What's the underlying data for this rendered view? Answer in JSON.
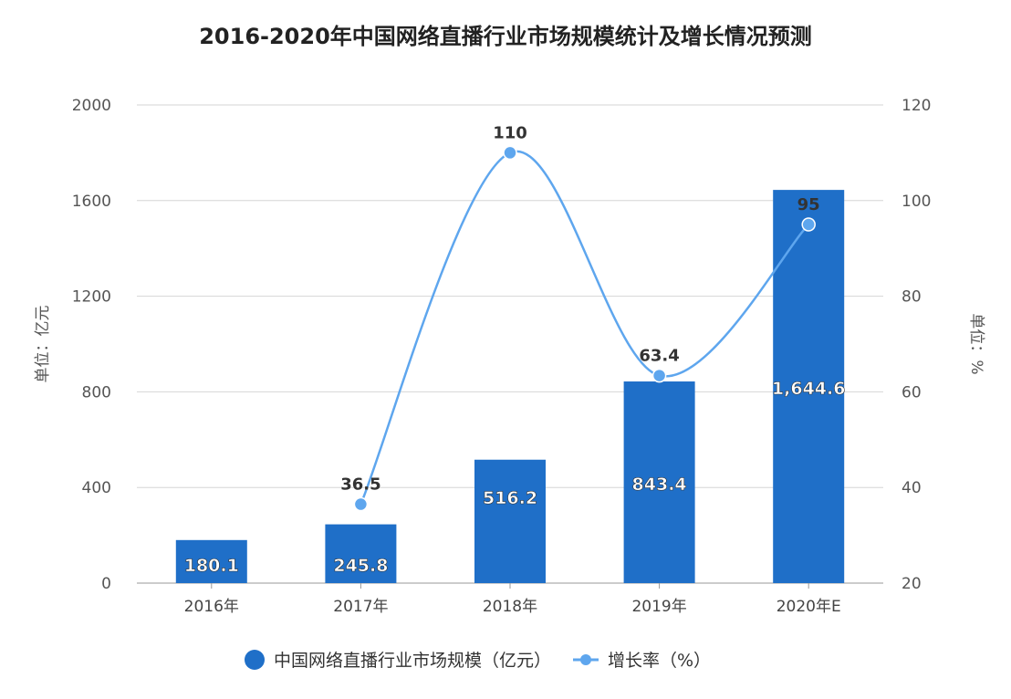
{
  "chart_data": {
    "type": "bar+line",
    "title": "2016-2020年中国网络直播行业市场规模统计及增长情况预测",
    "categories": [
      "2016年",
      "2017年",
      "2018年",
      "2019年",
      "2020年E"
    ],
    "ylabel_left": "单位：亿元",
    "ylabel_right": "单位：%",
    "ylim_left": [
      0,
      2000
    ],
    "yticks_left": [
      0,
      400,
      800,
      1200,
      1600,
      2000
    ],
    "ylim_right": [
      20,
      120
    ],
    "yticks_right": [
      20,
      40,
      60,
      80,
      100,
      120
    ],
    "grid": true,
    "legend_position": "bottom",
    "series": [
      {
        "name": "中国网络直播行业市场规模（亿元）",
        "type": "bar",
        "axis": "left",
        "color": "#1f6fc8",
        "values": [
          180.1,
          245.8,
          516.2,
          843.4,
          1644.6
        ],
        "labels": [
          "180.1",
          "245.8",
          "516.2",
          "843.4",
          "1,644.6"
        ]
      },
      {
        "name": "增长率（%）",
        "type": "line",
        "axis": "right",
        "color": "#5ea6ee",
        "values": [
          null,
          36.5,
          110,
          63.4,
          95
        ],
        "labels": [
          "",
          "36.5",
          "110",
          "63.4",
          "95"
        ]
      }
    ]
  }
}
